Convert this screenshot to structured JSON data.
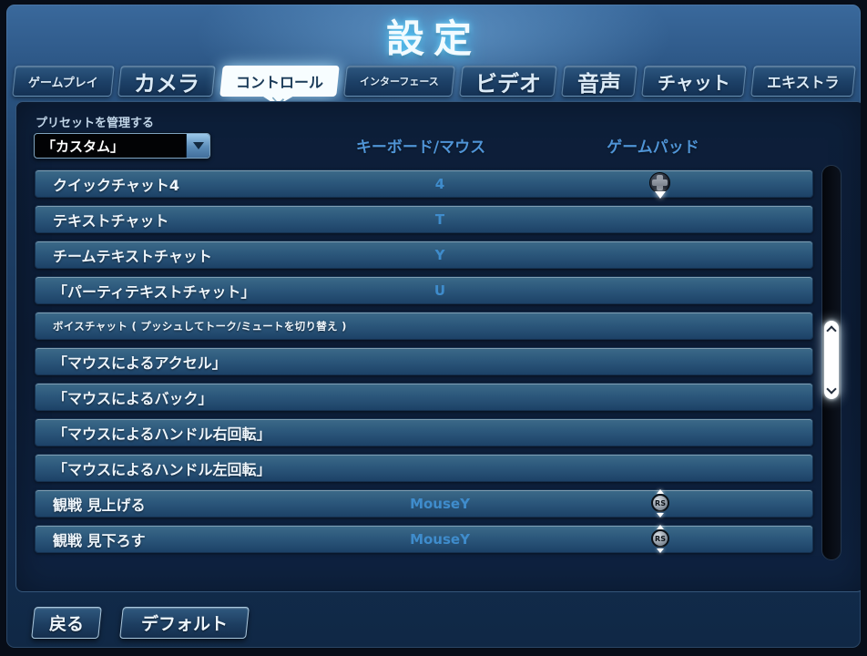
{
  "title": "設定",
  "tabs": [
    {
      "name": "gameplay",
      "label": "ゲームプレイ",
      "size": "s",
      "active": false
    },
    {
      "name": "camera",
      "label": "カメラ",
      "size": "xl",
      "active": false
    },
    {
      "name": "controls",
      "label": "コントロール",
      "size": "m",
      "active": true
    },
    {
      "name": "interface",
      "label": "インターフェース",
      "size": "xs",
      "active": false
    },
    {
      "name": "video",
      "label": "ビデオ",
      "size": "xl",
      "active": false
    },
    {
      "name": "audio",
      "label": "音声",
      "size": "xl",
      "active": false
    },
    {
      "name": "chat",
      "label": "チャット",
      "size": "l",
      "active": false
    },
    {
      "name": "extras",
      "label": "エキストラ",
      "size": "m",
      "active": false
    }
  ],
  "preset": {
    "label": "プリセットを管理する",
    "value": "「カスタム」"
  },
  "columns": {
    "keyboard": "キーボード/マウス",
    "gamepad": "ゲームパッド"
  },
  "rows": [
    {
      "label": "クイックチャット4",
      "key": "4",
      "pad": "dpad-down"
    },
    {
      "label": "テキストチャット",
      "key": "T"
    },
    {
      "label": "チームテキストチャット",
      "key": "Y"
    },
    {
      "label": "「パーティテキストチャット」",
      "key": "U"
    },
    {
      "label": "ボイスチャット ( プッシュしてトーク/ミュートを切り替え )",
      "small": true
    },
    {
      "label": "「マウスによるアクセル」"
    },
    {
      "label": "「マウスによるバック」"
    },
    {
      "label": "「マウスによるハンドル右回転」"
    },
    {
      "label": "「マウスによるハンドル左回転」"
    },
    {
      "label": "観戦 見上げる",
      "key": "MouseY",
      "pad": "right-stick"
    },
    {
      "label": "観戦 見下ろす",
      "key": "MouseY",
      "pad": "right-stick"
    }
  ],
  "icons": {
    "rs_label": "RS"
  },
  "buttons": {
    "back": "戻る",
    "default": "デフォルト"
  },
  "colors": {
    "title_glow": "#41c8ff",
    "column_header": "#4f94d6",
    "key_value": "#3f8ccc",
    "active_tab_bg": "#f7fdff",
    "row_top": "#3c6a88",
    "row_bottom": "#1d4267"
  }
}
